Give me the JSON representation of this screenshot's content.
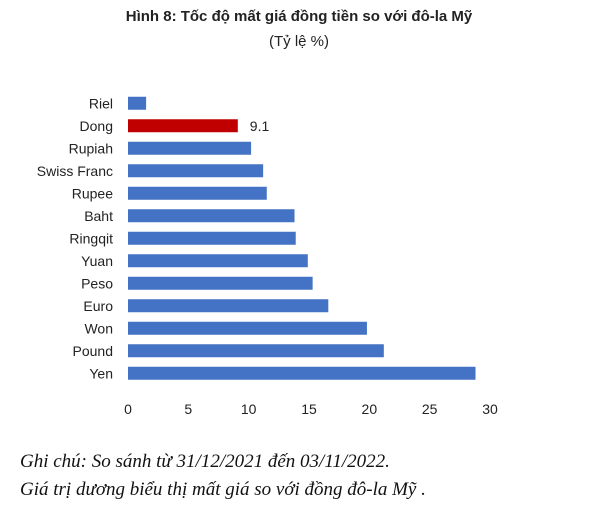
{
  "chart_data": {
    "type": "bar",
    "orientation": "horizontal",
    "title": "Hình 8: Tốc độ mất giá đồng tiền so với đô-la Mỹ",
    "subtitle": "(Tỷ lệ %)",
    "categories": [
      "Riel",
      "Dong",
      "Rupiah",
      "Swiss Franc",
      "Rupee",
      "Baht",
      "Ringqit",
      "Yuan",
      "Peso",
      "Euro",
      "Won",
      "Pound",
      "Yen"
    ],
    "values": [
      1.5,
      9.1,
      10.2,
      11.2,
      11.5,
      13.8,
      13.9,
      14.9,
      15.3,
      16.6,
      19.8,
      21.2,
      28.8
    ],
    "highlight_index": 1,
    "data_labels": {
      "Dong": "9.1"
    },
    "xlim": [
      0,
      30
    ],
    "xticks": [
      "0",
      "5",
      "10",
      "15",
      "20",
      "25",
      "30"
    ],
    "grid": false,
    "legend": "none",
    "bar_color": "#4472C4",
    "highlight_color": "#C00000"
  },
  "note": {
    "line1": "Ghi chú: So sánh từ 31/12/2021 đến 03/11/2022.",
    "line2": "Giá trị dương biểu thị mất giá so với đồng đô-la Mỹ ."
  }
}
